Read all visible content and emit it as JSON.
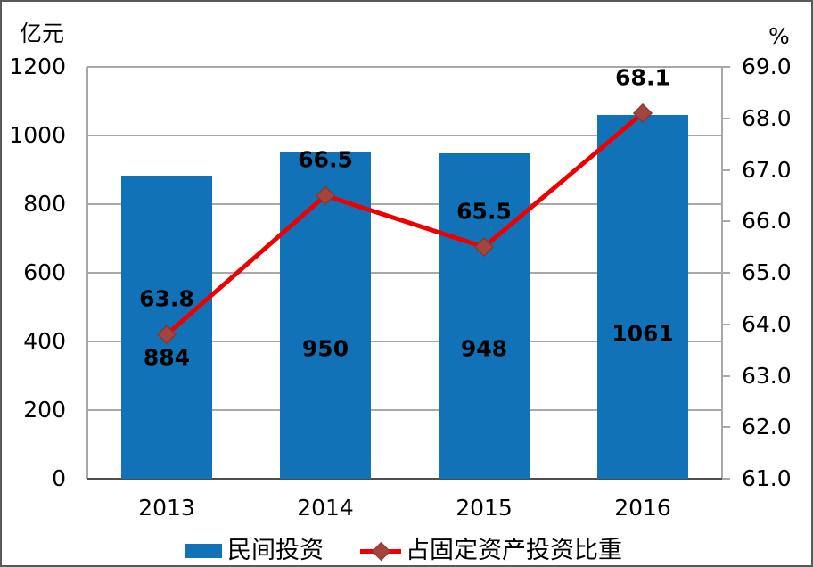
{
  "chart_data": {
    "type": "bar+line combo",
    "categories": [
      "2013",
      "2014",
      "2015",
      "2016"
    ],
    "series": [
      {
        "name": "民间投资",
        "type": "bar",
        "axis": "left",
        "values": [
          884,
          950,
          948,
          1061
        ],
        "data_labels": [
          "884",
          "950",
          "948",
          "1061"
        ],
        "color": "#1272b8"
      },
      {
        "name": "占固定资产投资比重",
        "type": "line",
        "axis": "right",
        "values": [
          63.8,
          66.5,
          65.5,
          68.1
        ],
        "data_labels": [
          "63.8",
          "66.5",
          "65.5",
          "68.1"
        ],
        "color": "#ee0000",
        "marker": "diamond",
        "marker_color": "#a3453c",
        "marker_border_color": "#8a372f"
      }
    ],
    "left_axis": {
      "title": "亿元",
      "min": 0,
      "max": 1200,
      "step": 200,
      "tick_labels": [
        "0",
        "200",
        "400",
        "600",
        "800",
        "1000",
        "1200"
      ]
    },
    "right_axis": {
      "title": "%",
      "min": 61.0,
      "max": 69.0,
      "step": 1.0,
      "tick_labels": [
        "61.0",
        "62.0",
        "63.0",
        "64.0",
        "65.0",
        "66.0",
        "67.0",
        "68.0",
        "69.0"
      ]
    },
    "grid": true,
    "gridline_color": "#a8a8a8",
    "axis_line_color": "#4d4d4d",
    "legend_position": "bottom"
  }
}
